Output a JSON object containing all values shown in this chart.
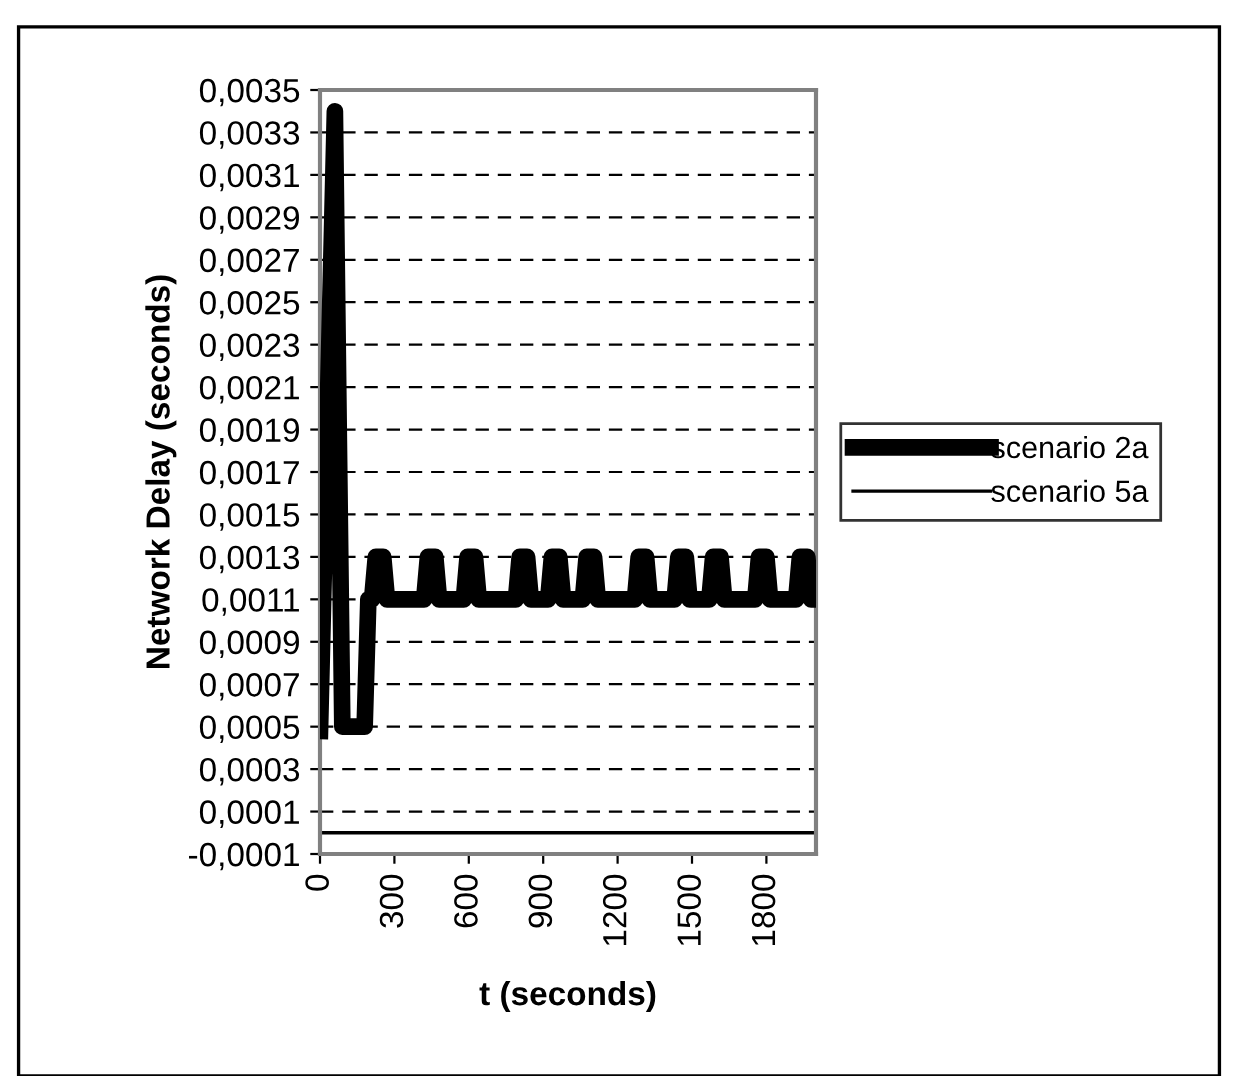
{
  "chart_data": {
    "type": "line",
    "xlabel": "t (seconds)",
    "ylabel": "Network Delay (seconds)",
    "xlim": [
      0,
      2000
    ],
    "xticks": [
      0,
      300,
      600,
      900,
      1200,
      1500,
      1800
    ],
    "ylim": [
      -0.0001,
      0.0035
    ],
    "yticks": [
      {
        "value": -0.0001,
        "label": "-0,0001"
      },
      {
        "value": 0.0001,
        "label": "0,0001"
      },
      {
        "value": 0.0003,
        "label": "0,0003"
      },
      {
        "value": 0.0005,
        "label": "0,0005"
      },
      {
        "value": 0.0007,
        "label": "0,0007"
      },
      {
        "value": 0.0009,
        "label": "0,0009"
      },
      {
        "value": 0.0011,
        "label": "0,0011"
      },
      {
        "value": 0.0013,
        "label": "0,0013"
      },
      {
        "value": 0.0015,
        "label": "0,0015"
      },
      {
        "value": 0.0017,
        "label": "0,0017"
      },
      {
        "value": 0.0019,
        "label": "0,0019"
      },
      {
        "value": 0.0021,
        "label": "0,0021"
      },
      {
        "value": 0.0023,
        "label": "0,0023"
      },
      {
        "value": 0.0025,
        "label": "0,0025"
      },
      {
        "value": 0.0027,
        "label": "0,0027"
      },
      {
        "value": 0.0029,
        "label": "0,0029"
      },
      {
        "value": 0.0031,
        "label": "0,0031"
      },
      {
        "value": 0.0033,
        "label": "0,0033"
      },
      {
        "value": 0.0035,
        "label": "0,0035"
      }
    ],
    "grid": "y",
    "legend": "right",
    "marker": "none",
    "line_style": "solid",
    "series": [
      {
        "name": "scenario 2a",
        "color": "#000000",
        "x": [
          0,
          60,
          90,
          180,
          195,
          210,
          225,
          255,
          270,
          420,
          435,
          465,
          480,
          580,
          595,
          625,
          640,
          790,
          805,
          835,
          850,
          920,
          935,
          965,
          980,
          1060,
          1075,
          1105,
          1120,
          1270,
          1285,
          1315,
          1330,
          1430,
          1445,
          1475,
          1490,
          1570,
          1585,
          1615,
          1630,
          1755,
          1770,
          1800,
          1815,
          1920,
          1935,
          1965,
          1980,
          2000
        ],
        "values": [
          0.00048,
          0.0034,
          0.0005,
          0.0005,
          0.0011,
          0.0011,
          0.0013,
          0.0013,
          0.0011,
          0.0011,
          0.0013,
          0.0013,
          0.0011,
          0.0011,
          0.0013,
          0.0013,
          0.0011,
          0.0011,
          0.0013,
          0.0013,
          0.0011,
          0.0011,
          0.0013,
          0.0013,
          0.0011,
          0.0011,
          0.0013,
          0.0013,
          0.0011,
          0.0011,
          0.0013,
          0.0013,
          0.0011,
          0.0011,
          0.0013,
          0.0013,
          0.0011,
          0.0011,
          0.0013,
          0.0013,
          0.0011,
          0.0011,
          0.0013,
          0.0013,
          0.0011,
          0.0011,
          0.0013,
          0.0013,
          0.0011,
          0.0011
        ]
      },
      {
        "name": "scenario 5a",
        "color": "#000000",
        "x": [
          0,
          2000
        ],
        "values": [
          0,
          0
        ]
      }
    ]
  }
}
